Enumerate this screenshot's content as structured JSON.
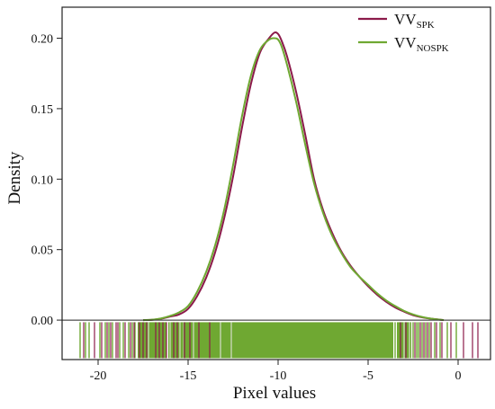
{
  "chart_data": {
    "type": "line",
    "xlabel": "Pixel values",
    "ylabel": "Density",
    "xlim": [
      -22,
      1.8
    ],
    "ylim": [
      -0.028,
      0.222
    ],
    "xticks": [
      -20,
      -15,
      -10,
      -5,
      0
    ],
    "xtick_labels": [
      "-20",
      "-15",
      "-10",
      "-5",
      "0"
    ],
    "yticks": [
      0.0,
      0.05,
      0.1,
      0.15,
      0.2
    ],
    "ytick_labels": [
      "0.00",
      "0.05",
      "0.10",
      "0.15",
      "0.20"
    ],
    "baseline": 0.0,
    "rug_band": [
      -0.027,
      -0.0015
    ],
    "legend_position": "top-right",
    "grid": false,
    "series": [
      {
        "name_main": "VV",
        "name_sub": "SPK",
        "color": "#8b1a4a",
        "x": [
          -17.5,
          -17,
          -16.5,
          -16,
          -15.5,
          -15,
          -14.5,
          -14,
          -13.5,
          -13,
          -12.5,
          -12,
          -11.5,
          -11,
          -10.5,
          -10.2,
          -10,
          -9.8,
          -9.5,
          -9,
          -8.5,
          -8,
          -7.5,
          -7,
          -6.5,
          -6,
          -5.5,
          -5,
          -4.5,
          -4,
          -3.5,
          -3,
          -2.5,
          -2,
          -1.5,
          -1,
          -0.8
        ],
        "y": [
          0.0,
          0.0002,
          0.001,
          0.0025,
          0.004,
          0.008,
          0.017,
          0.03,
          0.048,
          0.072,
          0.102,
          0.137,
          0.168,
          0.19,
          0.2,
          0.204,
          0.203,
          0.198,
          0.187,
          0.162,
          0.132,
          0.1,
          0.078,
          0.062,
          0.049,
          0.039,
          0.031,
          0.024,
          0.018,
          0.013,
          0.009,
          0.006,
          0.0035,
          0.002,
          0.001,
          0.0003,
          0.0
        ]
      },
      {
        "name_main": "VV",
        "name_sub": "NOSPK",
        "color": "#6fa832",
        "x": [
          -17.5,
          -17,
          -16.5,
          -16,
          -15.5,
          -15,
          -14.5,
          -14,
          -13.5,
          -13,
          -12.5,
          -12,
          -11.5,
          -11,
          -10.5,
          -10.2,
          -10,
          -9.8,
          -9.5,
          -9,
          -8.5,
          -8,
          -7.5,
          -7,
          -6.5,
          -6,
          -5.5,
          -5,
          -4.5,
          -4,
          -3.5,
          -3,
          -2.5,
          -2,
          -1.5,
          -1,
          -0.8
        ],
        "y": [
          0.0,
          0.0003,
          0.0012,
          0.003,
          0.0055,
          0.01,
          0.02,
          0.034,
          0.053,
          0.078,
          0.11,
          0.145,
          0.174,
          0.192,
          0.199,
          0.2,
          0.199,
          0.194,
          0.181,
          0.155,
          0.125,
          0.097,
          0.076,
          0.06,
          0.048,
          0.038,
          0.031,
          0.025,
          0.019,
          0.014,
          0.01,
          0.0065,
          0.004,
          0.0022,
          0.001,
          0.0003,
          0.0
        ]
      }
    ],
    "rug": {
      "green_ranges": [
        [
          -17.8,
          -16.2
        ],
        [
          -16.1,
          -15.3
        ],
        [
          -15.2,
          -3.6
        ],
        [
          -3.4,
          -2.6
        ]
      ],
      "green_x": [
        -21.0,
        -20.7,
        -20.5,
        -19.9,
        -19.6,
        -19.4,
        -19.2,
        -18.8,
        -18.6,
        -18.3,
        -18.1,
        -17.95,
        -16.25,
        -15.25,
        -3.5,
        -2.5,
        -2.3,
        -2.2,
        -2.0,
        -1.8,
        -1.6,
        -1.3,
        -1.0,
        -0.6,
        -0.1
      ],
      "purple_x": [
        -20.8,
        -20.2,
        -19.8,
        -19.5,
        -19.3,
        -19.0,
        -18.9,
        -18.5,
        -18.2,
        -18.0,
        -17.7,
        -17.5,
        -17.3,
        -16.8,
        -16.6,
        -16.4,
        -16.2,
        -15.8,
        -15.6,
        -15.2,
        -14.9,
        -14.4,
        -13.8,
        -3.2,
        -2.9,
        -2.4,
        -2.1,
        -1.9,
        -1.7,
        -1.5,
        -1.2,
        -0.9,
        -0.4,
        0.3,
        0.8,
        1.1
      ],
      "white_x": [
        -17.2,
        -16.0,
        -15.45,
        -14.7,
        -13.2,
        -12.6,
        -3.0,
        -2.7
      ]
    }
  }
}
